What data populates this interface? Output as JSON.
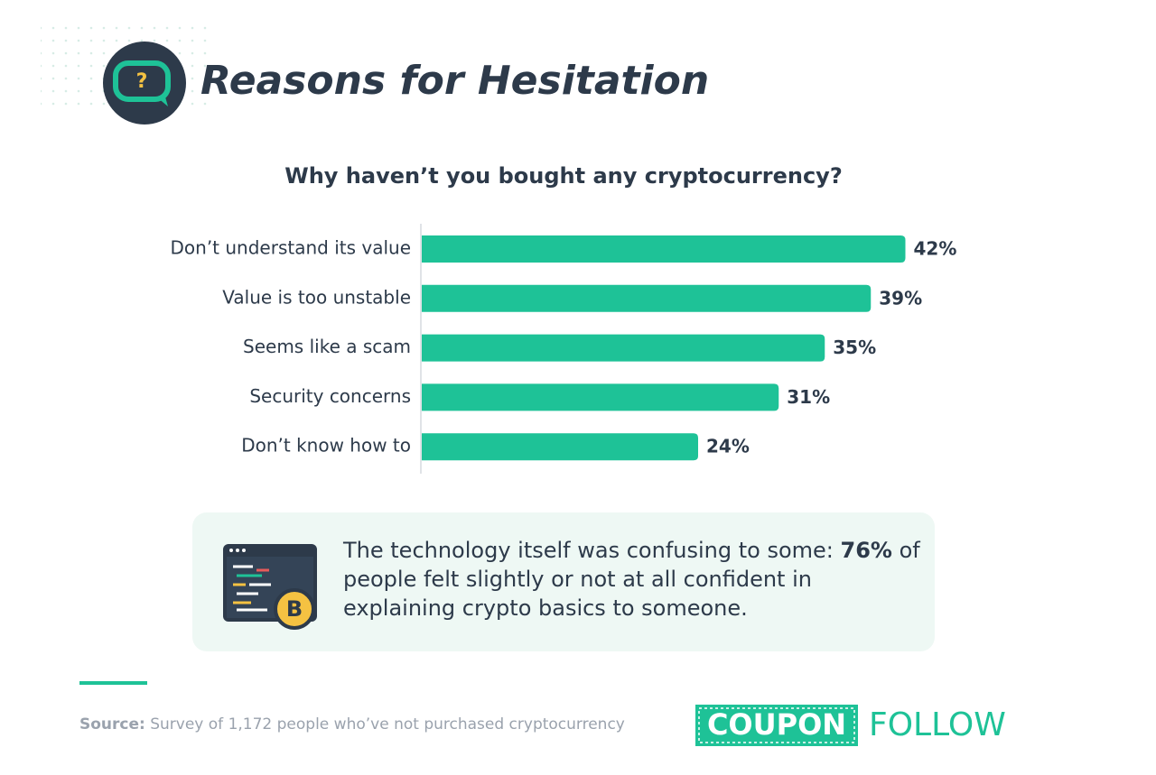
{
  "chart_data": {
    "type": "bar",
    "orientation": "horizontal",
    "header_title": "Reasons for Hesitation",
    "title": "Why haven’t you bought any cryptocurrency?",
    "categories": [
      "Don’t understand its value",
      "Value is too unstable",
      "Seems like a scam",
      "Security concerns",
      "Don’t know how to"
    ],
    "values": [
      42,
      39,
      35,
      31,
      24
    ],
    "value_labels": [
      "42%",
      "39%",
      "35%",
      "31%",
      "24%"
    ],
    "color": "#1ec297",
    "callout": {
      "text_before": "The technology itself was confusing to some: ",
      "highlight": "76%",
      "text_after": " of people felt slightly or not at all confident in explaining crypto basics to someone."
    },
    "source_label": "Source:",
    "source_text": "Survey of 1,172 people who’ve not purchased cryptocurrency",
    "logo": [
      "COUPON",
      "FOLLOW"
    ]
  }
}
